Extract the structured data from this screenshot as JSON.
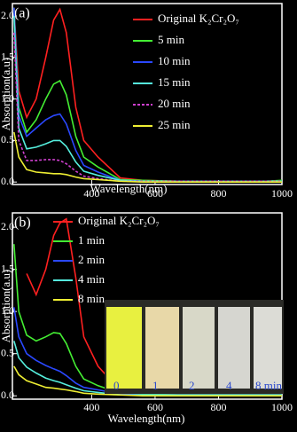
{
  "chart_data": [
    {
      "type": "line",
      "panel_label": "(a)",
      "x_label": "Wavelength(nm)",
      "y_label": "Absorption(a.u)",
      "x": [
        155,
        170,
        195,
        225,
        255,
        280,
        300,
        320,
        350,
        375,
        420,
        490,
        560,
        670,
        810,
        950,
        1000
      ],
      "xlim": [
        150,
        1000
      ],
      "xticks": [
        400,
        600,
        800,
        1000
      ],
      "ylim": [
        -0.03,
        2.15
      ],
      "yticks": [
        {
          "value": 0,
          "label": "0.0"
        },
        {
          "value": 0.5,
          "label": "0.5"
        },
        {
          "value": 1,
          "label": "1.0"
        },
        {
          "value": 1.5,
          "label": "1.5"
        },
        {
          "value": 2,
          "label": "2.0"
        }
      ],
      "series": [
        {
          "name": "Original K₂Cr₂O₇",
          "color": "#ff2020",
          "values": [
            2.1,
            1.1,
            0.78,
            1.0,
            1.5,
            1.95,
            2.08,
            1.8,
            0.9,
            0.5,
            0.3,
            0.05,
            0.02,
            0.01,
            0.01,
            0.01,
            0.01
          ]
        },
        {
          "name": "5  min",
          "color": "#44ee33",
          "values": [
            2.1,
            0.9,
            0.6,
            0.75,
            1.0,
            1.18,
            1.22,
            1.05,
            0.55,
            0.3,
            0.18,
            0.03,
            0.02,
            0.01,
            0.01,
            0.01,
            0.02
          ]
        },
        {
          "name": "10 min",
          "color": "#2a48ff",
          "values": [
            2.1,
            0.8,
            0.55,
            0.65,
            0.75,
            0.8,
            0.82,
            0.7,
            0.38,
            0.2,
            0.12,
            0.02,
            0.01,
            0.01,
            0.01,
            0.01,
            0.01
          ]
        },
        {
          "name": "15 min",
          "color": "#55eedd",
          "values": [
            2.0,
            0.65,
            0.4,
            0.42,
            0.46,
            0.5,
            0.5,
            0.43,
            0.24,
            0.13,
            0.08,
            0.02,
            0.01,
            0.01,
            0.01,
            0.01,
            0.01
          ]
        },
        {
          "name": "20 min",
          "color": "#d040d0",
          "linestyle": "dashed",
          "values": [
            1.8,
            0.5,
            0.26,
            0.26,
            0.27,
            0.27,
            0.26,
            0.22,
            0.13,
            0.07,
            0.04,
            0.01,
            0.01,
            0.01,
            0.01,
            0.01,
            0.01
          ]
        },
        {
          "name": "25 min",
          "color": "#eeee33",
          "values": [
            0.6,
            0.3,
            0.15,
            0.12,
            0.11,
            0.1,
            0.1,
            0.09,
            0.06,
            0.04,
            0.03,
            0.01,
            0,
            0,
            0,
            0,
            0
          ]
        }
      ]
    },
    {
      "type": "line",
      "panel_label": "(b)",
      "x_label": "Wavelength(nm)",
      "y_label": "Absorption(a.u)",
      "x": [
        155,
        170,
        195,
        225,
        255,
        280,
        300,
        320,
        350,
        375,
        420,
        490,
        560,
        670,
        810,
        950,
        1000
      ],
      "xlim": [
        150,
        1000
      ],
      "xticks": [
        400,
        600,
        800,
        1000
      ],
      "ylim": [
        -0.04,
        2.17
      ],
      "yticks": [
        {
          "value": 0,
          "label": "0.0"
        },
        {
          "value": 0.5,
          "label": "0.5"
        },
        {
          "value": 1,
          "label": "1.0"
        },
        {
          "value": 1.5,
          "label": "1.5"
        },
        {
          "value": 2,
          "label": "2.0"
        }
      ],
      "series": [
        {
          "name": "Original K₂Cr₂O₇",
          "color": "#ff2020",
          "values": [
            null,
            null,
            1.45,
            1.2,
            1.5,
            1.9,
            2.05,
            2.1,
            1.4,
            0.7,
            0.35,
            0.06,
            0.02,
            0.01,
            0.01,
            0.01,
            0.01
          ]
        },
        {
          "name": "1 min",
          "color": "#44ee33",
          "values": [
            1.8,
            1.0,
            0.72,
            0.65,
            0.7,
            0.75,
            0.74,
            0.62,
            0.35,
            0.2,
            0.12,
            0.03,
            0.02,
            0.01,
            0.01,
            0.01,
            0.01
          ]
        },
        {
          "name": "2 min",
          "color": "#2a48ff",
          "values": [
            1.05,
            0.7,
            0.5,
            0.42,
            0.36,
            0.32,
            0.29,
            0.24,
            0.15,
            0.1,
            0.07,
            0.02,
            0.01,
            0.01,
            0.01,
            0.01,
            0.01
          ]
        },
        {
          "name": "4 min",
          "color": "#55eedd",
          "values": [
            0.65,
            0.45,
            0.34,
            0.27,
            0.21,
            0.18,
            0.16,
            0.13,
            0.09,
            0.06,
            0.04,
            0.01,
            0.01,
            0.01,
            0.01,
            0.01,
            0.01
          ]
        },
        {
          "name": "8 min",
          "color": "#eeee33",
          "values": [
            0.35,
            0.25,
            0.18,
            0.14,
            0.1,
            0.09,
            0.08,
            0.07,
            0.05,
            0.03,
            0.02,
            0.01,
            0,
            0,
            0,
            0,
            0
          ]
        }
      ],
      "inset_labels": [
        "0",
        "1",
        "2",
        "4",
        "8 min"
      ]
    }
  ]
}
